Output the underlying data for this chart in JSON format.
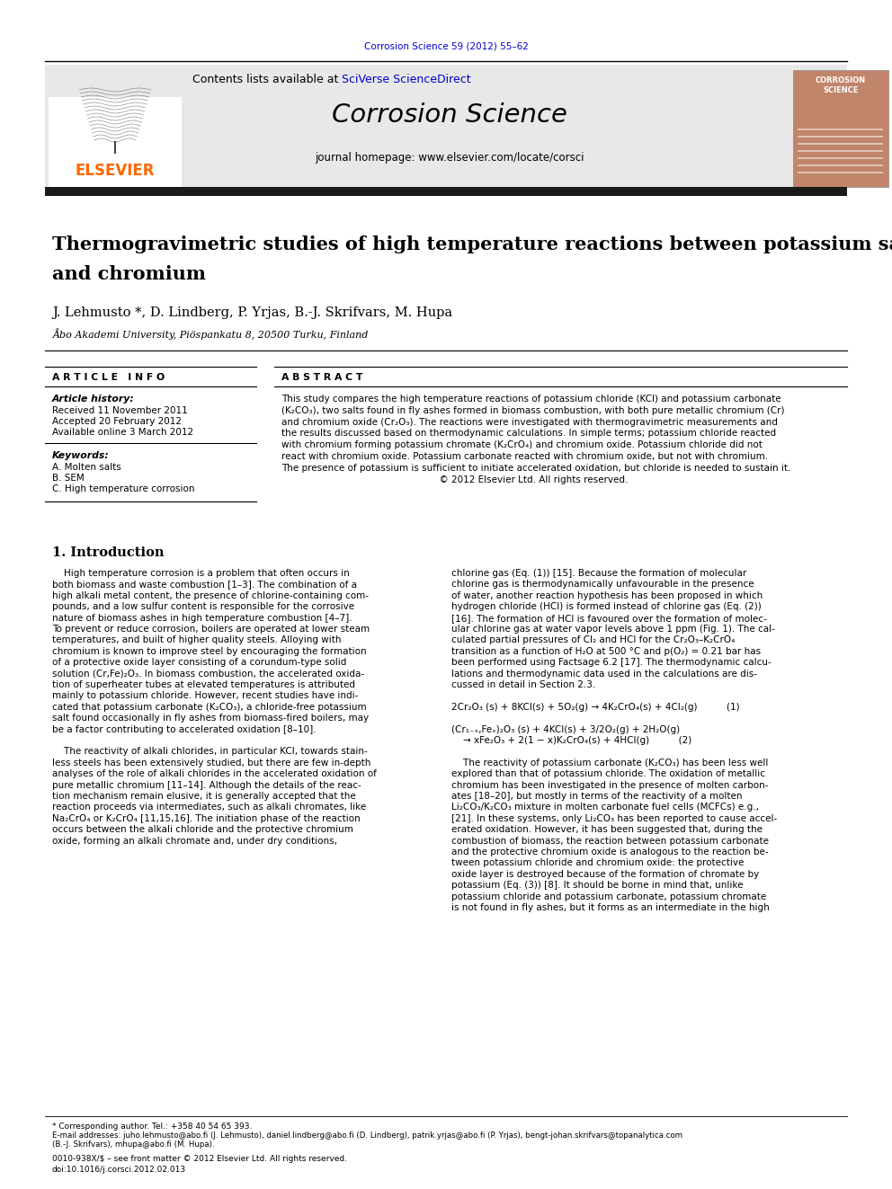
{
  "journal_header": "Corrosion Science 59 (2012) 55–62",
  "journal_name": "Corrosion Science",
  "contents_line": "Contents lists available at SciVerse ScienceDirect",
  "journal_homepage": "journal homepage: www.elsevier.com/locate/corsci",
  "authors": "J. Lehmusto *, D. Lindberg, P. Yrjas, B.-J. Skrifvars, M. Hupa",
  "affiliation": "Åbo Akademi University, Piöspankatu 8, 20500 Turku, Finland",
  "article_info_title": "A R T I C L E   I N F O",
  "abstract_title": "A B S T R A C T",
  "article_history": "Article history:",
  "received": "Received 11 November 2011",
  "accepted": "Accepted 20 February 2012",
  "available": "Available online 3 March 2012",
  "keywords_title": "Keywords:",
  "keyword1": "A. Molten salts",
  "keyword2": "B. SEM",
  "keyword3": "C. High temperature corrosion",
  "section1_title": "1. Introduction",
  "footnote": "* Corresponding author. Tel.: +358 40 54 65 393.",
  "email_line": "E-mail addresses: juho.lehmusto@abo.fi (J. Lehmusto), daniel.lindberg@abo.fi (D. Lindberg), patrik.yrjas@abo.fi (P. Yrjas), bengt-johan.skrifvars@topanalytica.com",
  "email_line2": "(B.-J. Skrifvars), mhupa@abo.fi (M. Hupa).",
  "issn_line": "0010-938X/$ – see front matter © 2012 Elsevier Ltd. All rights reserved.",
  "doi_line": "doi:10.1016/j.corsci.2012.02.013",
  "elsevier_color": "#FF6600",
  "link_color": "#0000CC",
  "header_bar_color": "#1a1a1a",
  "background_color": "#FFFFFF",
  "header_bg": "#E8E8E8",
  "abstract_lines": [
    "This study compares the high temperature reactions of potassium chloride (KCl) and potassium carbonate",
    "(K₂CO₃), two salts found in fly ashes formed in biomass combustion, with both pure metallic chromium (Cr)",
    "and chromium oxide (Cr₂O₃). The reactions were investigated with thermogravimetric measurements and",
    "the results discussed based on thermodynamic calculations. In simple terms; potassium chloride reacted",
    "with chromium forming potassium chromate (K₂CrO₄) and chromium oxide. Potassium chloride did not",
    "react with chromium oxide. Potassium carbonate reacted with chromium oxide, but not with chromium.",
    "The presence of potassium is sufficient to initiate accelerated oxidation, but chloride is needed to sustain it.",
    "                                                      © 2012 Elsevier Ltd. All rights reserved."
  ],
  "intro_left_lines": [
    "    High temperature corrosion is a problem that often occurs in",
    "both biomass and waste combustion [1–3]. The combination of a",
    "high alkali metal content, the presence of chlorine-containing com-",
    "pounds, and a low sulfur content is responsible for the corrosive",
    "nature of biomass ashes in high temperature combustion [4–7].",
    "To prevent or reduce corrosion, boilers are operated at lower steam",
    "temperatures, and built of higher quality steels. Alloying with",
    "chromium is known to improve steel by encouraging the formation",
    "of a protective oxide layer consisting of a corundum-type solid",
    "solution (Cr,Fe)₂O₃. In biomass combustion, the accelerated oxida-",
    "tion of superheater tubes at elevated temperatures is attributed",
    "mainly to potassium chloride. However, recent studies have indi-",
    "cated that potassium carbonate (K₂CO₃), a chloride-free potassium",
    "salt found occasionally in fly ashes from biomass-fired boilers, may",
    "be a factor contributing to accelerated oxidation [8–10].",
    "",
    "    The reactivity of alkali chlorides, in particular KCl, towards stain-",
    "less steels has been extensively studied, but there are few in-depth",
    "analyses of the role of alkali chlorides in the accelerated oxidation of",
    "pure metallic chromium [11–14]. Although the details of the reac-",
    "tion mechanism remain elusive, it is generally accepted that the",
    "reaction proceeds via intermediates, such as alkali chromates, like",
    "Na₂CrO₄ or K₂CrO₄ [11,15,16]. The initiation phase of the reaction",
    "occurs between the alkali chloride and the protective chromium",
    "oxide, forming an alkali chromate and, under dry conditions,"
  ],
  "intro_right_lines": [
    "chlorine gas (Eq. (1)) [15]. Because the formation of molecular",
    "chlorine gas is thermodynamically unfavourable in the presence",
    "of water, another reaction hypothesis has been proposed in which",
    "hydrogen chloride (HCl) is formed instead of chlorine gas (Eq. (2))",
    "[16]. The formation of HCl is favoured over the formation of molec-",
    "ular chlorine gas at water vapor levels above 1 ppm (Fig. 1). The cal-",
    "culated partial pressures of Cl₂ and HCl for the Cr₂O₃–K₂CrO₄",
    "transition as a function of H₂O at 500 °C and p(O₂) = 0.21 bar has",
    "been performed using Factsage 6.2 [17]. The thermodynamic calcu-",
    "lations and thermodynamic data used in the calculations are dis-",
    "cussed in detail in Section 2.3.",
    "",
    "2Cr₂O₃ (s) + 8KCl(s) + 5O₂(g) → 4K₂CrO₄(s) + 4Cl₂(g)          (1)",
    "",
    "(Cr₁₋ₓ,Feₓ)₂O₃ (s) + 4KCl(s) + 3/2O₂(g) + 2H₂O(g)",
    "    → xFe₂O₃ + 2(1 − x)K₂CrO₄(s) + 4HCl(g)          (2)",
    "",
    "    The reactivity of potassium carbonate (K₂CO₃) has been less well",
    "explored than that of potassium chloride. The oxidation of metallic",
    "chromium has been investigated in the presence of molten carbon-",
    "ates [18–20], but mostly in terms of the reactivity of a molten",
    "Li₂CO₃/K₂CO₃ mixture in molten carbonate fuel cells (MCFCs) e.g.,",
    "[21]. In these systems, only Li₂CO₃ has been reported to cause accel-",
    "erated oxidation. However, it has been suggested that, during the",
    "combustion of biomass, the reaction between potassium carbonate",
    "and the protective chromium oxide is analogous to the reaction be-",
    "tween potassium chloride and chromium oxide: the protective",
    "oxide layer is destroyed because of the formation of chromate by",
    "potassium (Eq. (3)) [8]. It should be borne in mind that, unlike",
    "potassium chloride and potassium carbonate, potassium chromate",
    "is not found in fly ashes, but it forms as an intermediate in the high"
  ]
}
